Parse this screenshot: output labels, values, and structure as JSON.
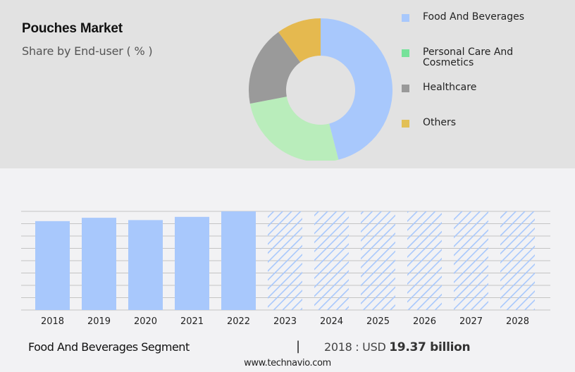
{
  "header": {
    "title": "Pouches Market",
    "subtitle": "Share by End-user ( % )"
  },
  "legend": [
    {
      "label": "Food And Beverages",
      "color": "#a8c8fc"
    },
    {
      "label": "Personal Care And\nCosmetics",
      "color": "#76e29a"
    },
    {
      "label": "Healthcare",
      "color": "#999999"
    },
    {
      "label": "Others",
      "color": "#e2c056"
    }
  ],
  "footer": {
    "segment": "Food And Beverages Segment",
    "separator": "|",
    "year_label": "2018 : USD ",
    "value": "19.37 billion",
    "url": "www.technavio.com"
  },
  "chart_data": [
    {
      "type": "pie",
      "title": "Pouches Market",
      "subtitle": "Share by End-user ( % )",
      "donut": true,
      "categories": [
        "Food And Beverages",
        "Personal Care And Cosmetics",
        "Healthcare",
        "Others"
      ],
      "values": [
        46,
        26,
        18,
        10
      ],
      "colors": [
        "#a8c8fc",
        "#b9edbb",
        "#9a9a9a",
        "#e5b94f"
      ],
      "legend_position": "right"
    },
    {
      "type": "bar",
      "title": "Food And Beverages Segment",
      "categories": [
        "2018",
        "2019",
        "2020",
        "2021",
        "2022",
        "2023",
        "2024",
        "2025",
        "2026",
        "2027",
        "2028"
      ],
      "values": [
        19.37,
        20.1,
        19.6,
        20.3,
        21.5,
        null,
        null,
        null,
        null,
        null,
        null
      ],
      "forecast": [
        false,
        false,
        false,
        false,
        false,
        true,
        true,
        true,
        true,
        true,
        true
      ],
      "annotation": "2018 : USD 19.37 billion",
      "xlabel": "",
      "ylabel": "",
      "grid": true,
      "y_axis_labels_visible": false,
      "bar_color": "#a8c8fc",
      "forecast_style": "diagonal-hatch"
    }
  ]
}
